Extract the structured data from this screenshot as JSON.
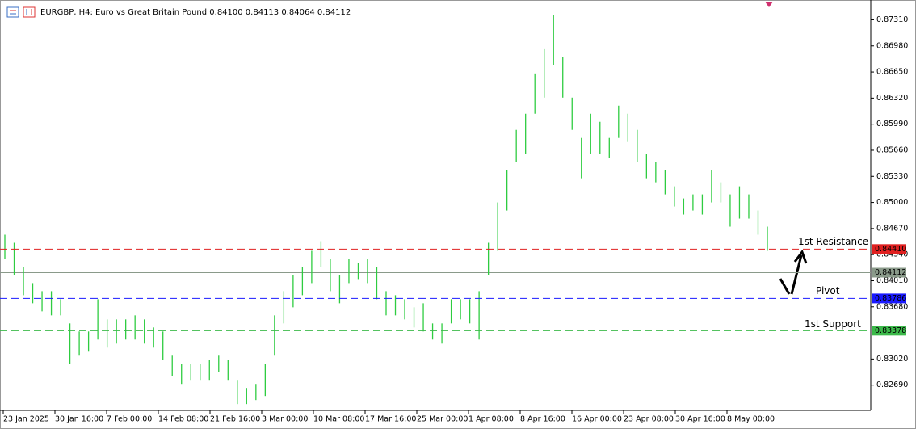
{
  "chart_data": {
    "type": "ohlc",
    "title": "EURGBP, H4:  Euro vs Great Britain Pound  0.84100 0.84113 0.84064 0.84112",
    "color": "#2ecc40",
    "highs": [
      0.84592,
      0.8449,
      0.84184,
      0.8398,
      0.83878,
      0.83878,
      0.83776,
      0.8347,
      0.83368,
      0.83368,
      0.83776,
      0.83521,
      0.83521,
      0.83521,
      0.83572,
      0.83521,
      0.83419,
      0.83368,
      0.83062,
      0.8296,
      0.8296,
      0.8296,
      0.83011,
      0.83062,
      0.83011,
      0.82756,
      0.82654,
      0.82705,
      0.8296,
      0.83572,
      0.83878,
      0.84082,
      0.84184,
      0.84388,
      0.8451,
      0.84286,
      0.84082,
      0.84286,
      0.84235,
      0.84286,
      0.84184,
      0.83878,
      0.83827,
      0.83776,
      0.83674,
      0.83725,
      0.8347,
      0.8347,
      0.83776,
      0.83776,
      0.83776,
      0.83878,
      0.8449,
      0.85,
      0.85408,
      0.85918,
      0.86122,
      0.86632,
      0.86938,
      0.87366,
      0.86836,
      0.86326,
      0.85816,
      0.86122,
      0.8602,
      0.85816,
      0.86224,
      0.86122,
      0.85918,
      0.85612,
      0.8551,
      0.85408,
      0.85204,
      0.85051,
      0.85102,
      0.85102,
      0.85408,
      0.85255,
      0.85102,
      0.85204,
      0.85102,
      0.84898,
      0.84694
    ],
    "lows": [
      0.84286,
      0.84082,
      0.83827,
      0.83725,
      0.83623,
      0.83572,
      0.83572,
      0.8296,
      0.83062,
      0.83113,
      0.83266,
      0.83164,
      0.83215,
      0.83266,
      0.83266,
      0.83215,
      0.83164,
      0.83011,
      0.82807,
      0.82705,
      0.82756,
      0.82756,
      0.82756,
      0.82858,
      0.82756,
      0.8245,
      0.8245,
      0.82501,
      0.82552,
      0.83062,
      0.8347,
      0.83674,
      0.83827,
      0.8398,
      0.84184,
      0.83878,
      0.83725,
      0.8398,
      0.84031,
      0.8398,
      0.83776,
      0.83572,
      0.83572,
      0.83521,
      0.83419,
      0.83368,
      0.83266,
      0.83215,
      0.8347,
      0.83521,
      0.8347,
      0.83266,
      0.84082,
      0.84388,
      0.84898,
      0.8551,
      0.85612,
      0.86122,
      0.86326,
      0.86734,
      0.86326,
      0.85918,
      0.85306,
      0.85612,
      0.85612,
      0.85561,
      0.85816,
      0.85765,
      0.8551,
      0.85306,
      0.85255,
      0.85102,
      0.84949,
      0.84847,
      0.84898,
      0.84847,
      0.85,
      0.85,
      0.84694,
      0.84796,
      0.84796,
      0.84592,
      0.84388
    ],
    "ylim": [
      0.8237,
      0.8756
    ],
    "yticks": [
      {
        "value": 0.8731,
        "label": "0.87310"
      },
      {
        "value": 0.8698,
        "label": "0.86980"
      },
      {
        "value": 0.8665,
        "label": "0.86650"
      },
      {
        "value": 0.8632,
        "label": "0.86320"
      },
      {
        "value": 0.8599,
        "label": "0.85990"
      },
      {
        "value": 0.8566,
        "label": "0.85660"
      },
      {
        "value": 0.8533,
        "label": "0.85330"
      },
      {
        "value": 0.85,
        "label": "0.85000"
      },
      {
        "value": 0.8467,
        "label": "0.84670"
      },
      {
        "value": 0.8434,
        "label": "0.84340"
      },
      {
        "value": 0.8401,
        "label": "0.84010"
      },
      {
        "value": 0.8368,
        "label": "0.83680"
      },
      {
        "value": 0.8302,
        "label": "0.83020"
      },
      {
        "value": 0.8269,
        "label": "0.82690"
      }
    ],
    "xlabels": [
      "23 Jan 2025",
      "30 Jan 16:00",
      "7 Feb 00:00",
      "14 Feb 08:00",
      "21 Feb 16:00",
      "3 Mar 00:00",
      "10 Mar 08:00",
      "17 Mar 16:00",
      "25 Mar 00:00",
      "1 Apr 08:00",
      "8 Apr 16:00",
      "16 Apr 00:00",
      "23 Apr 08:00",
      "30 Apr 16:00",
      "8 May 00:00"
    ],
    "levels": [
      {
        "name": "1st Resistance",
        "value": 0.8441,
        "label": "0.84410",
        "color": "#e02020"
      },
      {
        "name": "Pivot",
        "value": 0.83786,
        "label": "0.83786",
        "color": "#1a1aff"
      },
      {
        "name": "1st Support",
        "value": 0.83378,
        "label": "0.83378",
        "color": "#3cb94a"
      }
    ],
    "current": {
      "value": 0.84112,
      "label": "0.84112",
      "color": "#8a9a8a"
    }
  }
}
